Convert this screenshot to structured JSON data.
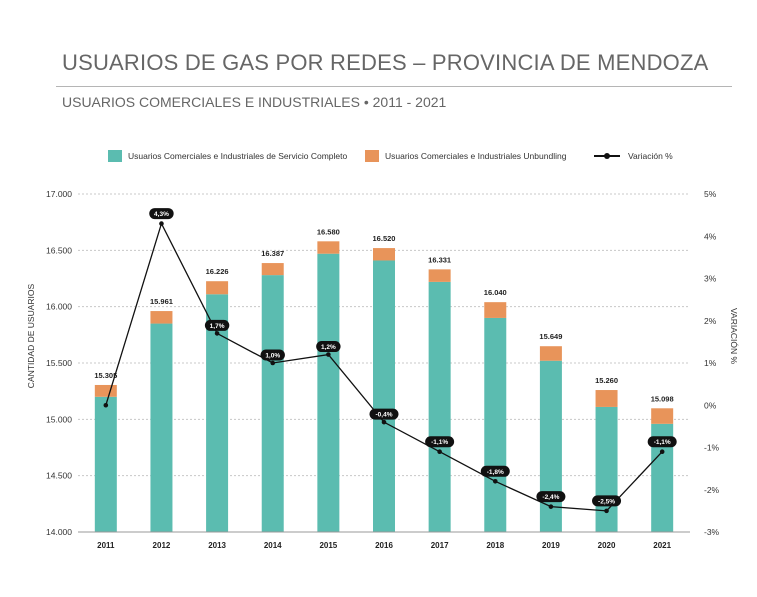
{
  "header": {
    "title": "USUARIOS DE GAS POR REDES – PROVINCIA DE MENDOZA",
    "subtitle": "USUARIOS COMERCIALES E INDUSTRIALES • 2011 - 2021"
  },
  "legend": {
    "items": [
      {
        "label": "Usuarios Comerciales e Industriales de Servicio Completo",
        "color": "#5bbcb0",
        "kind": "bar"
      },
      {
        "label": "Usuarios Comerciales e Industriales Unbundling",
        "color": "#e8945a",
        "kind": "bar"
      },
      {
        "label": "Variación %",
        "color": "#111111",
        "kind": "line"
      }
    ]
  },
  "chart_data": {
    "type": "bar",
    "categories": [
      "2011",
      "2012",
      "2013",
      "2014",
      "2015",
      "2016",
      "2017",
      "2018",
      "2019",
      "2020",
      "2021"
    ],
    "series": [
      {
        "name": "Usuarios Comerciales e Industriales de Servicio Completo",
        "color": "#5bbcb0",
        "values": [
          15200,
          15850,
          16110,
          16280,
          16470,
          16410,
          16220,
          15900,
          15520,
          15110,
          14960
        ]
      },
      {
        "name": "Usuarios Comerciales e Industriales Unbundling",
        "color": "#e8945a",
        "values": [
          105,
          111,
          116,
          107,
          110,
          110,
          111,
          140,
          129,
          150,
          138
        ]
      }
    ],
    "totals": [
      15305,
      15961,
      16226,
      16387,
      16580,
      16520,
      16331,
      16040,
      15649,
      15260,
      15098
    ],
    "total_labels": [
      "15.305",
      "15.961",
      "16.226",
      "16.387",
      "16.580",
      "16.520",
      "16.331",
      "16.040",
      "15.649",
      "15.260",
      "15.098"
    ],
    "line": {
      "name": "Variación %",
      "color": "#111111",
      "values": [
        0.0,
        4.3,
        1.7,
        1.0,
        1.2,
        -0.4,
        -1.1,
        -1.8,
        -2.4,
        -2.5,
        -1.1
      ],
      "point_labels": [
        "",
        "4,3%",
        "1,7%",
        "1,0%",
        "1,2%",
        "-0,4%",
        "-1,1%",
        "-1,8%",
        "-2,4%",
        "-2,5%",
        "-1,1%"
      ]
    },
    "ylabel": "CANTIDAD DE USUARIOS",
    "ylim": [
      14000,
      17000
    ],
    "yticks": [
      "14.000",
      "14.500",
      "15.000",
      "15.500",
      "16.000",
      "16.500",
      "17.000"
    ],
    "y2label": "VARIACIÓN %",
    "y2lim": [
      -3,
      5
    ],
    "y2ticks": [
      "-3%",
      "-2%",
      "-1%",
      "0%",
      "1%",
      "2%",
      "3%",
      "4%",
      "5%"
    ],
    "grid": true,
    "legend_position": "top"
  }
}
